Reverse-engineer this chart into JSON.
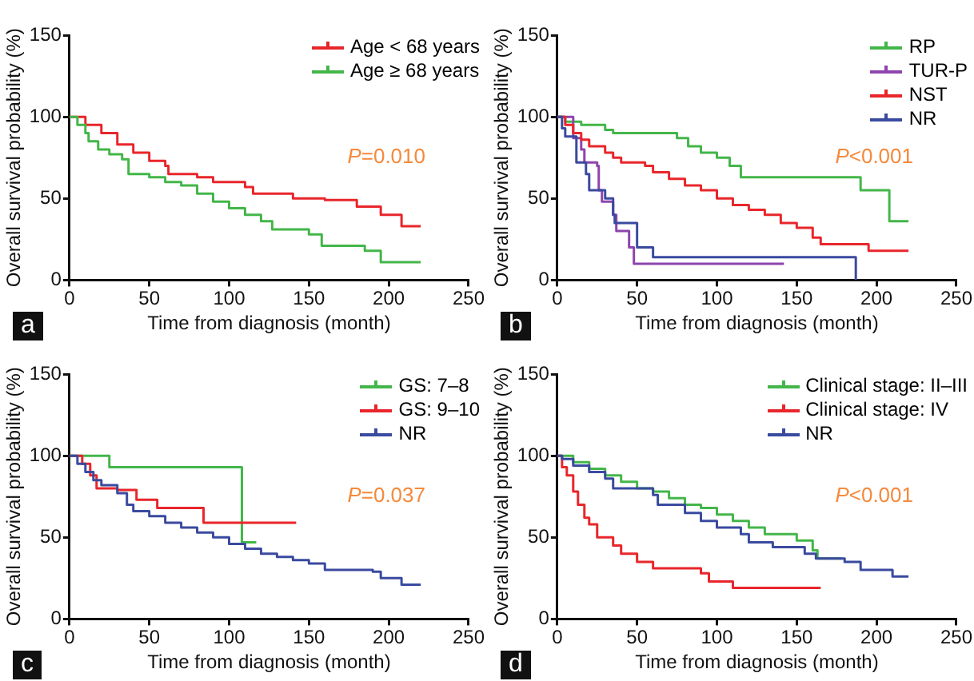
{
  "chart_data": [
    {
      "type": "step",
      "xlabel": "Time from diagnosis (month)",
      "ylabel": "Overall survival probability (%)",
      "annotations": [
        "a",
        "P=0.010"
      ],
      "xlim": [
        0,
        250
      ],
      "xticks": [
        0,
        50,
        100,
        150,
        200,
        250
      ],
      "ylim": [
        0,
        150
      ],
      "yticks": [
        0,
        50,
        100,
        150
      ],
      "grid": false,
      "legend": "top right",
      "series": [
        {
          "name": "Age < 68 years",
          "color": "#e8262b",
          "x": [
            0,
            10,
            20,
            30,
            40,
            50,
            60,
            62,
            80,
            90,
            110,
            115,
            140,
            160,
            180,
            195,
            208,
            220
          ],
          "values": [
            100,
            95,
            90,
            83,
            78,
            73,
            70,
            65,
            63,
            60,
            57,
            53,
            50,
            49,
            45,
            40,
            33,
            33
          ]
        },
        {
          "name": "Age ≥ 68 years",
          "color": "#43b649",
          "x": [
            0,
            5,
            10,
            12,
            18,
            25,
            33,
            37,
            50,
            60,
            70,
            80,
            90,
            100,
            110,
            120,
            127,
            150,
            158,
            185,
            195,
            220
          ],
          "values": [
            100,
            95,
            90,
            85,
            80,
            77,
            74,
            65,
            63,
            60,
            58,
            53,
            48,
            44,
            40,
            36,
            31,
            28,
            21,
            18,
            11,
            11
          ]
        }
      ]
    },
    {
      "type": "step",
      "xlabel": "Time from diagnosis (month)",
      "ylabel": "Overall survival probability (%)",
      "annotations": [
        "b",
        "P<0.001"
      ],
      "xlim": [
        0,
        250
      ],
      "xticks": [
        0,
        50,
        100,
        150,
        200,
        250
      ],
      "ylim": [
        0,
        150
      ],
      "yticks": [
        0,
        50,
        100,
        150
      ],
      "grid": false,
      "legend": "top right",
      "series": [
        {
          "name": "RP",
          "color": "#43b649",
          "x": [
            0,
            5,
            15,
            30,
            35,
            75,
            82,
            90,
            100,
            108,
            115,
            190,
            208,
            220
          ],
          "values": [
            100,
            97,
            95,
            92,
            90,
            87,
            82,
            78,
            75,
            70,
            63,
            55,
            36,
            36
          ]
        },
        {
          "name": "TUR-P",
          "color": "#8e44ad",
          "x": [
            0,
            10,
            15,
            17,
            25,
            26,
            28,
            35,
            37,
            45,
            48,
            142
          ],
          "values": [
            100,
            87,
            80,
            72,
            70,
            55,
            48,
            40,
            30,
            20,
            10,
            10
          ]
        },
        {
          "name": "NST",
          "color": "#e8262b",
          "x": [
            0,
            5,
            10,
            15,
            20,
            30,
            35,
            40,
            55,
            60,
            70,
            80,
            90,
            100,
            110,
            120,
            130,
            140,
            150,
            160,
            165,
            195,
            220
          ],
          "values": [
            100,
            95,
            90,
            86,
            82,
            78,
            75,
            72,
            70,
            66,
            62,
            58,
            55,
            50,
            46,
            43,
            40,
            35,
            32,
            26,
            22,
            18,
            18
          ]
        },
        {
          "name": "NR",
          "color": "#3a4a9f",
          "x": [
            0,
            3,
            5,
            12,
            18,
            20,
            30,
            35,
            36,
            50,
            60,
            187
          ],
          "values": [
            100,
            93,
            88,
            72,
            65,
            55,
            50,
            40,
            35,
            20,
            14,
            0
          ]
        }
      ]
    },
    {
      "type": "step",
      "xlabel": "Time from diagnosis (month)",
      "ylabel": "Overall survival probability (%)",
      "annotations": [
        "c",
        "P=0.037"
      ],
      "xlim": [
        0,
        250
      ],
      "xticks": [
        0,
        50,
        100,
        150,
        200,
        250
      ],
      "ylim": [
        0,
        150
      ],
      "yticks": [
        0,
        50,
        100,
        150
      ],
      "grid": false,
      "legend": "top right",
      "series": [
        {
          "name": "GS: 7–8",
          "color": "#43b649",
          "x": [
            0,
            25,
            108,
            117
          ],
          "values": [
            100,
            93,
            47,
            47
          ]
        },
        {
          "name": "GS: 9–10",
          "color": "#e8262b",
          "x": [
            0,
            8,
            13,
            17,
            30,
            42,
            55,
            84,
            142
          ],
          "values": [
            100,
            95,
            88,
            80,
            79,
            73,
            68,
            59,
            59
          ]
        },
        {
          "name": "NR",
          "color": "#3a4a9f",
          "x": [
            0,
            5,
            10,
            15,
            20,
            30,
            36,
            40,
            50,
            60,
            70,
            80,
            90,
            100,
            110,
            120,
            130,
            140,
            150,
            160,
            190,
            195,
            208,
            220
          ],
          "values": [
            100,
            95,
            90,
            85,
            82,
            77,
            70,
            66,
            63,
            59,
            56,
            53,
            50,
            46,
            43,
            40,
            38,
            36,
            34,
            30,
            29,
            25,
            21,
            21
          ]
        }
      ]
    },
    {
      "type": "step",
      "xlabel": "Time from diagnosis (month)",
      "ylabel": "Overall survival probability (%)",
      "annotations": [
        "d",
        "P<0.001"
      ],
      "xlim": [
        0,
        250
      ],
      "xticks": [
        0,
        50,
        100,
        150,
        200,
        250
      ],
      "ylim": [
        0,
        150
      ],
      "yticks": [
        0,
        50,
        100,
        150
      ],
      "grid": false,
      "legend": "top right",
      "series": [
        {
          "name": "Clinical stage: II–III",
          "color": "#43b649",
          "x": [
            0,
            10,
            20,
            30,
            40,
            50,
            60,
            70,
            80,
            90,
            100,
            110,
            120,
            130,
            150,
            160,
            163,
            178
          ],
          "values": [
            100,
            96,
            92,
            88,
            84,
            80,
            78,
            74,
            70,
            68,
            64,
            60,
            56,
            52,
            48,
            42,
            37,
            37
          ]
        },
        {
          "name": "Clinical stage: IV",
          "color": "#e8262b",
          "x": [
            0,
            3,
            6,
            10,
            13,
            17,
            20,
            25,
            35,
            40,
            50,
            60,
            90,
            95,
            110,
            165
          ],
          "values": [
            100,
            93,
            88,
            78,
            70,
            62,
            58,
            50,
            45,
            40,
            35,
            31,
            28,
            23,
            19,
            19
          ]
        },
        {
          "name": "NR",
          "color": "#3a4a9f",
          "x": [
            0,
            3,
            10,
            20,
            30,
            35,
            60,
            63,
            80,
            90,
            100,
            115,
            120,
            135,
            155,
            162,
            180,
            190,
            210,
            220
          ],
          "values": [
            100,
            98,
            94,
            90,
            86,
            80,
            76,
            70,
            65,
            60,
            56,
            52,
            47,
            44,
            40,
            37,
            35,
            30,
            26,
            26
          ]
        }
      ]
    }
  ]
}
